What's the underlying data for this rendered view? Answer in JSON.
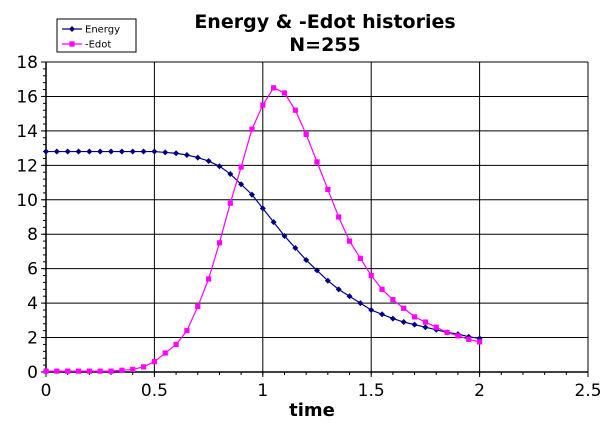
{
  "chart_data": {
    "type": "line",
    "title": "Energy & -Edot histories",
    "subtitle": "N=255",
    "xlabel": "time",
    "ylabel": "",
    "xlim": [
      0,
      2.5
    ],
    "ylim": [
      0,
      18
    ],
    "x_ticks": [
      0,
      0.5,
      1,
      1.5,
      2,
      2.5
    ],
    "y_ticks": [
      0,
      2,
      4,
      6,
      8,
      10,
      12,
      14,
      16,
      18
    ],
    "grid": true,
    "legend_position": "top-left",
    "series": [
      {
        "name": "Energy",
        "color": "#000080",
        "marker": "diamond",
        "x": [
          0,
          0.05,
          0.1,
          0.15,
          0.2,
          0.25,
          0.3,
          0.35,
          0.4,
          0.45,
          0.5,
          0.55,
          0.6,
          0.65,
          0.7,
          0.75,
          0.8,
          0.85,
          0.9,
          0.95,
          1.0,
          1.05,
          1.1,
          1.15,
          1.2,
          1.25,
          1.3,
          1.35,
          1.4,
          1.45,
          1.5,
          1.55,
          1.6,
          1.65,
          1.7,
          1.75,
          1.8,
          1.85,
          1.9,
          1.95,
          2.0
        ],
        "y": [
          12.8,
          12.8,
          12.8,
          12.8,
          12.8,
          12.8,
          12.8,
          12.8,
          12.8,
          12.8,
          12.8,
          12.75,
          12.7,
          12.6,
          12.45,
          12.25,
          11.95,
          11.5,
          10.9,
          10.3,
          9.5,
          8.7,
          7.9,
          7.2,
          6.5,
          5.9,
          5.3,
          4.8,
          4.4,
          4.0,
          3.6,
          3.35,
          3.1,
          2.9,
          2.75,
          2.6,
          2.45,
          2.3,
          2.2,
          2.05,
          1.95
        ]
      },
      {
        "name": "-Edot",
        "color": "#ff00ff",
        "marker": "square",
        "x": [
          0,
          0.05,
          0.1,
          0.15,
          0.2,
          0.25,
          0.3,
          0.35,
          0.4,
          0.45,
          0.5,
          0.55,
          0.6,
          0.65,
          0.7,
          0.75,
          0.8,
          0.85,
          0.9,
          0.95,
          1.0,
          1.05,
          1.1,
          1.15,
          1.2,
          1.25,
          1.3,
          1.35,
          1.4,
          1.45,
          1.5,
          1.55,
          1.6,
          1.65,
          1.7,
          1.75,
          1.8,
          1.85,
          1.9,
          1.95,
          2.0
        ],
        "y": [
          0.05,
          0.05,
          0.05,
          0.05,
          0.05,
          0.05,
          0.05,
          0.1,
          0.15,
          0.3,
          0.6,
          1.1,
          1.6,
          2.4,
          3.8,
          5.4,
          7.5,
          9.8,
          11.9,
          14.1,
          15.5,
          16.5,
          16.2,
          15.2,
          13.8,
          12.2,
          10.6,
          9.0,
          7.6,
          6.6,
          5.6,
          4.8,
          4.2,
          3.7,
          3.2,
          2.9,
          2.6,
          2.3,
          2.1,
          1.9,
          1.75
        ]
      }
    ]
  }
}
